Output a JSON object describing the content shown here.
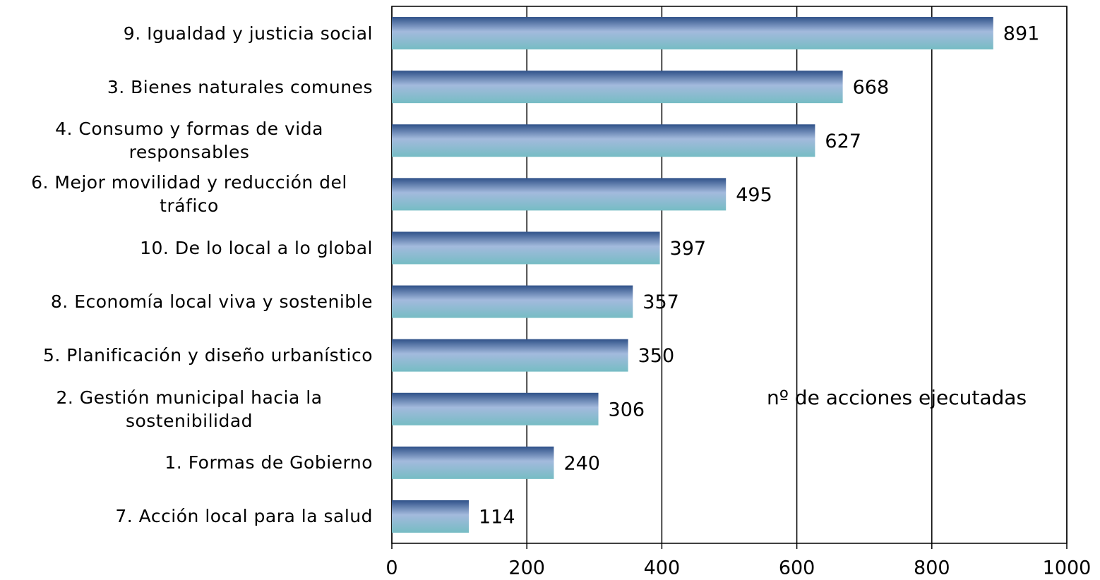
{
  "chart_data": {
    "type": "bar",
    "orientation": "horizontal",
    "categories": [
      "9. Igualdad y justicia social",
      "3. Bienes naturales comunes",
      "4. Consumo y formas de vida responsables",
      "6. Mejor movilidad y reducción del tráfico",
      "10. De lo local a lo global",
      "8. Economía local viva y sostenible",
      "5. Planificación y diseño urbanístico",
      "2. Gestión municipal hacia la sostenibilidad",
      "1. Formas de Gobierno",
      "7. Acción local para la salud"
    ],
    "values": [
      891,
      668,
      627,
      495,
      397,
      357,
      350,
      306,
      240,
      114
    ],
    "annotation": "nº de acciones ejecutadas",
    "xlim": [
      0,
      1000
    ],
    "xticks": [
      0,
      200,
      400,
      600,
      800,
      1000
    ],
    "grid": true
  }
}
